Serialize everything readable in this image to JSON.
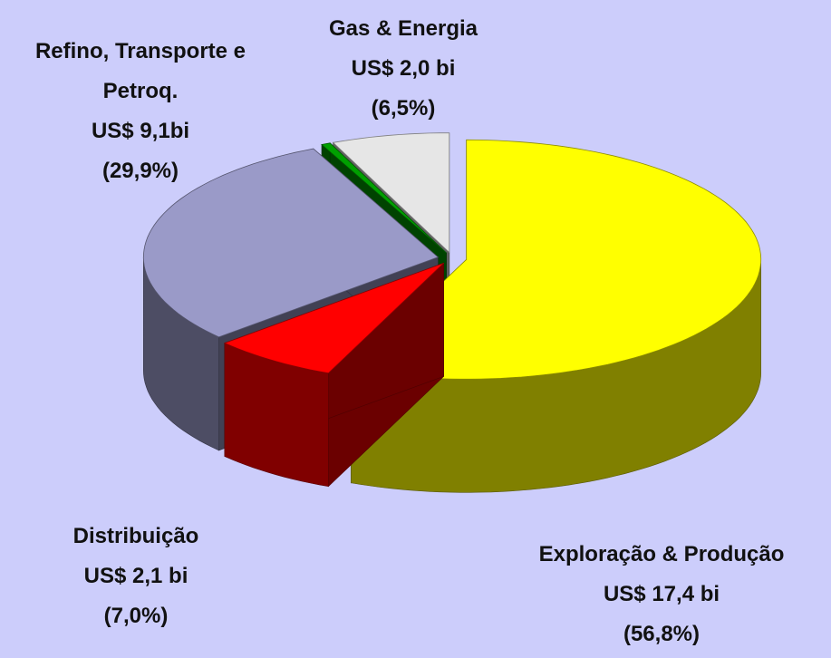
{
  "chart_data": {
    "type": "pie3d",
    "categories": [
      "Exploração & Produção",
      "Distribuição",
      "Refino, Transporte e Petroq.",
      null,
      "Gas & Energia"
    ],
    "values": [
      56.8,
      7.0,
      29.9,
      0.5,
      6.5
    ],
    "value_labels": [
      "(56,8%)",
      "(7,0%)",
      "(29,9%)",
      null,
      "(6,5%)"
    ],
    "amounts": [
      17.4,
      2.1,
      9.1,
      null,
      2.0
    ],
    "amount_labels": [
      "US$ 17,4 bi",
      "US$ 2,1 bi",
      "US$ 9,1bi",
      null,
      "US$ 2,0 bi"
    ],
    "colors": [
      "#ffff00",
      "#ff0000",
      "#9a9ac8",
      "#00a000",
      "#e6e6e6"
    ]
  }
}
